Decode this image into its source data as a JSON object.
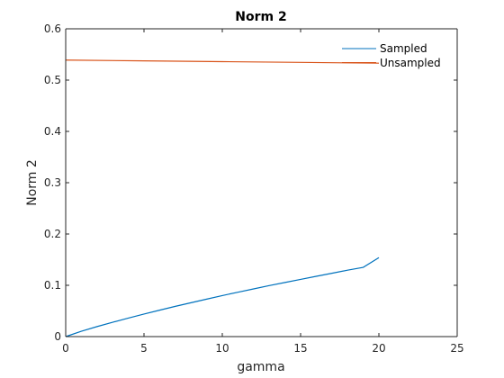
{
  "chart_data": {
    "type": "line",
    "title": "Norm 2",
    "xlabel": "gamma",
    "ylabel": "Norm 2",
    "xlim": [
      0,
      25
    ],
    "ylim": [
      0,
      0.6
    ],
    "xticks": [
      "0",
      "5",
      "10",
      "15",
      "20",
      "25"
    ],
    "yticks": [
      "0",
      "0.1",
      "0.2",
      "0.3",
      "0.4",
      "0.5",
      "0.6"
    ],
    "grid": false,
    "legend_position": "top-right",
    "series": [
      {
        "name": "Sampled",
        "color": "#0072BD",
        "x": [
          0,
          1,
          2,
          3,
          4,
          5,
          6,
          7,
          8,
          9,
          10,
          11,
          12,
          13,
          14,
          15,
          16,
          17,
          18,
          19,
          20
        ],
        "y": [
          0,
          0.0105,
          0.0195,
          0.028,
          0.036,
          0.044,
          0.0515,
          0.059,
          0.066,
          0.073,
          0.08,
          0.0865,
          0.093,
          0.0995,
          0.1055,
          0.1115,
          0.1175,
          0.1235,
          0.1295,
          0.135,
          0.154
        ]
      },
      {
        "name": "Unsampled",
        "color": "#D95319",
        "x": [
          0,
          5,
          10,
          15,
          20
        ],
        "y": [
          0.539,
          0.5375,
          0.536,
          0.5345,
          0.533
        ]
      }
    ]
  }
}
